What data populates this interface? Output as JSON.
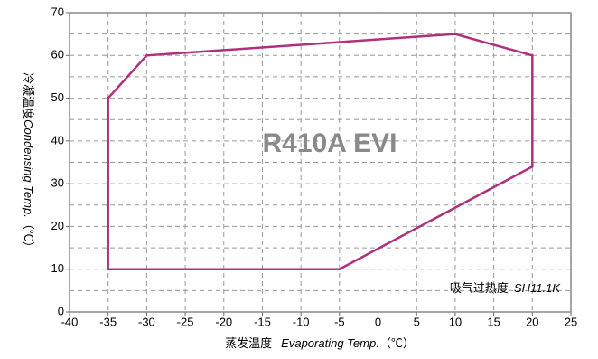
{
  "chart_data": {
    "type": "line",
    "title": "R410A EVI",
    "annotation": {
      "label": "吸气过热度",
      "value": "SH11.1K"
    },
    "xlabel": {
      "cn": "蒸发温度",
      "en": "Evaporating Temp.",
      "unit": "（℃）"
    },
    "ylabel": {
      "cn": "冷凝温度",
      "en": "Condensing Temp.",
      "unit": "（℃）"
    },
    "xlim": [
      -40,
      25
    ],
    "ylim": [
      0,
      70
    ],
    "xticks": [
      -40,
      -35,
      -30,
      -25,
      -20,
      -15,
      -10,
      -5,
      0,
      5,
      10,
      15,
      20,
      25
    ],
    "yticks": [
      0,
      10,
      20,
      30,
      40,
      50,
      60,
      70
    ],
    "y_minor_ticks": [
      5,
      15,
      25,
      35,
      45,
      55,
      65
    ],
    "grid": true,
    "series": [
      {
        "color": "#b0307e",
        "closed": true,
        "x": [
          -35,
          -35,
          -30,
          10,
          20,
          20,
          -5
        ],
        "y": [
          10,
          50,
          60,
          65,
          60,
          34,
          10
        ]
      }
    ]
  }
}
